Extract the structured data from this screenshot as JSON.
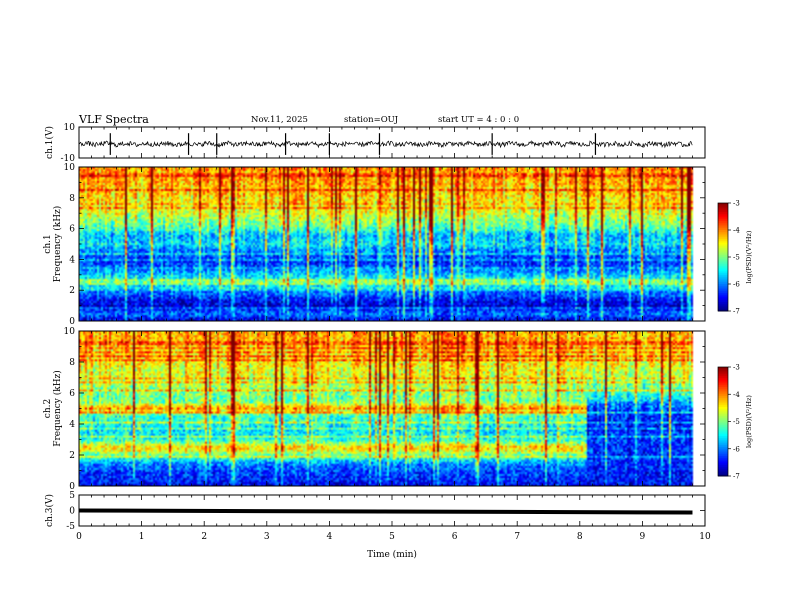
{
  "header": {
    "title": "VLF Spectra",
    "date": "Nov.11, 2025",
    "station": "station=OUJ",
    "start_ut": "start UT =  4 : 0  : 0"
  },
  "chart_data": [
    {
      "type": "line",
      "ylabel": "ch.1(V)",
      "ylim": [
        -10,
        10
      ],
      "yticks": [
        "10",
        "-10"
      ],
      "xlim": [
        0,
        10
      ],
      "series": [
        {
          "x": [
            0,
            9.8
          ],
          "y": [
            0,
            0
          ]
        }
      ],
      "spikes_min": [
        0.5,
        1.75,
        2.2,
        3.3,
        4.0,
        4.8,
        6.6,
        8.25
      ]
    },
    {
      "type": "heatmap",
      "ylabel_top": "ch.1",
      "ylabel": "Frequency (kHz)",
      "ylim": [
        0,
        10
      ],
      "yticks": [
        "0",
        "2",
        "4",
        "6",
        "8",
        "10"
      ],
      "xlim": [
        0,
        10
      ],
      "data_xmax": 9.8,
      "colorbar": {
        "label": "log(PSD)(V²/Hz)",
        "ticks": [
          "-3",
          "-4",
          "-5",
          "-6",
          "-7"
        ],
        "range": [
          -7,
          -3
        ]
      },
      "levels_kHz": [
        [
          0,
          -6.6
        ],
        [
          0.5,
          -6.1
        ],
        [
          1.0,
          -6.7
        ],
        [
          1.5,
          -6.3
        ],
        [
          2.0,
          -6.0
        ],
        [
          2.5,
          -5.3
        ],
        [
          3.0,
          -5.7
        ],
        [
          3.5,
          -6.2
        ],
        [
          4.0,
          -6.3
        ],
        [
          4.5,
          -6.0
        ],
        [
          5.0,
          -5.5
        ],
        [
          5.5,
          -5.8
        ],
        [
          6.0,
          -5.2
        ],
        [
          6.5,
          -4.9
        ],
        [
          7.0,
          -4.6
        ],
        [
          8.0,
          -4.4
        ],
        [
          9.0,
          -4.2
        ],
        [
          10.0,
          -4.1
        ]
      ]
    },
    {
      "type": "heatmap",
      "ylabel_top": "ch.2",
      "ylabel": "Frequency (kHz)",
      "ylim": [
        0,
        10
      ],
      "yticks": [
        "0",
        "2",
        "4",
        "6",
        "8",
        "10"
      ],
      "xlim": [
        0,
        10
      ],
      "data_xmax": 9.8,
      "colorbar": {
        "label": "log(PSD)(V²/Hz)",
        "ticks": [
          "-3",
          "-4",
          "-5",
          "-6",
          "-7"
        ],
        "range": [
          -7,
          -3
        ]
      },
      "change_time_min": 8.1,
      "levels_kHz_before": [
        [
          0,
          -6.5
        ],
        [
          1.0,
          -6.2
        ],
        [
          1.5,
          -5.9
        ],
        [
          2.0,
          -5.0
        ],
        [
          2.5,
          -4.3
        ],
        [
          3.0,
          -5.4
        ],
        [
          3.5,
          -5.6
        ],
        [
          4.0,
          -5.4
        ],
        [
          4.5,
          -5.2
        ],
        [
          5.0,
          -4.1
        ],
        [
          5.5,
          -5.1
        ],
        [
          6.0,
          -4.9
        ],
        [
          7.0,
          -4.6
        ],
        [
          8.0,
          -4.4
        ],
        [
          9.0,
          -4.2
        ],
        [
          10.0,
          -4.1
        ]
      ],
      "levels_kHz_after": [
        [
          0,
          -6.5
        ],
        [
          1.0,
          -6.4
        ],
        [
          2.0,
          -6.3
        ],
        [
          3.0,
          -6.3
        ],
        [
          4.0,
          -6.4
        ],
        [
          5.0,
          -6.2
        ],
        [
          6.0,
          -5.2
        ],
        [
          7.0,
          -4.8
        ],
        [
          8.0,
          -4.5
        ],
        [
          9.0,
          -4.3
        ],
        [
          10.0,
          -4.2
        ]
      ]
    },
    {
      "type": "line",
      "ylabel": "ch.3(V)",
      "ylim": [
        -5,
        5
      ],
      "yticks": [
        "5",
        "0",
        "-5"
      ],
      "xlim": [
        0,
        10
      ],
      "xlabel": "Time (min)",
      "xticks": [
        "0",
        "1",
        "2",
        "3",
        "4",
        "5",
        "6",
        "7",
        "8",
        "9",
        "10"
      ],
      "series": [
        {
          "x": [
            0,
            9.8
          ],
          "y": [
            0,
            0
          ]
        }
      ]
    }
  ]
}
